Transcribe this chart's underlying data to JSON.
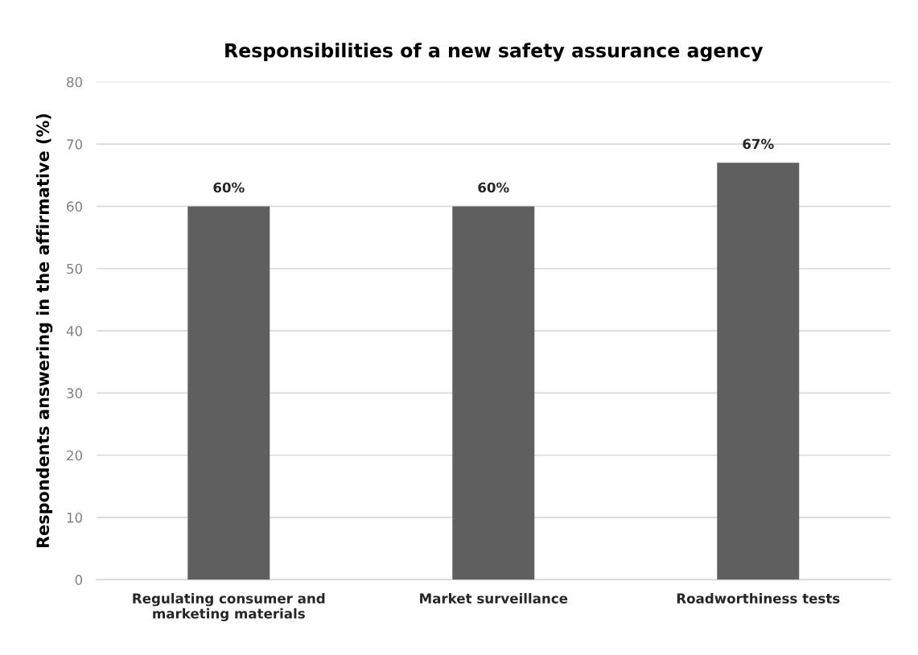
{
  "chart_data": {
    "type": "bar",
    "title": "Responsibilities of a new safety assurance agency",
    "ylabel": "Respondents answering in the affirmative (%)",
    "categories": [
      "Regulating consumer and\nmarketing materials",
      "Market surveillance",
      "Roadworthiness tests"
    ],
    "values": [
      60,
      60,
      67
    ],
    "value_labels": [
      "60%",
      "60%",
      "67%"
    ],
    "color": "#5f5f5f",
    "ylim": [
      0,
      80
    ],
    "yticks": [
      0,
      10,
      20,
      30,
      40,
      50,
      60,
      70,
      80
    ],
    "grid": "y",
    "legend": false
  }
}
